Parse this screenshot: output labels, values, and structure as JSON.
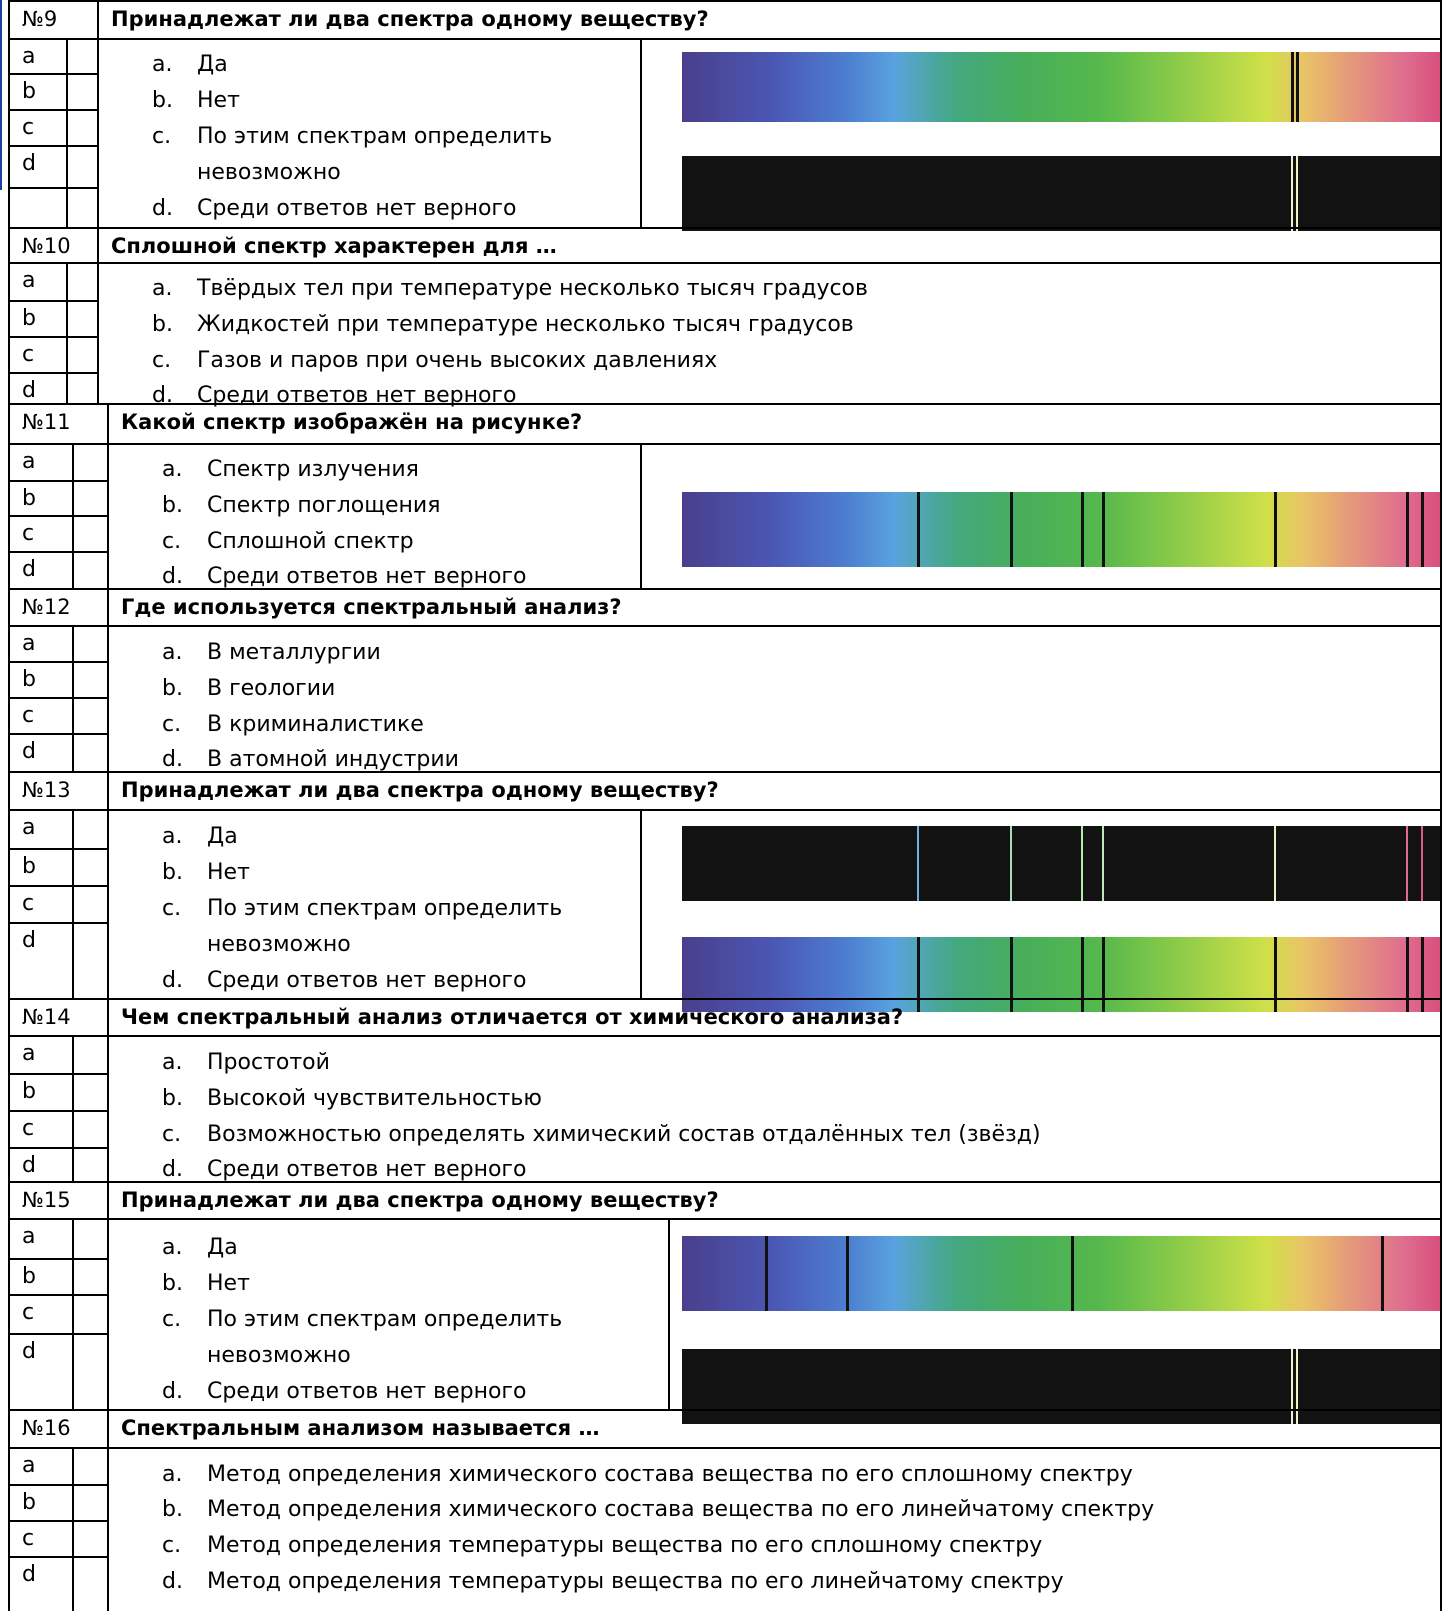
{
  "questions": [
    {
      "number": "№9",
      "text": "Принадлежат ли два спектра одному веществу?",
      "answer_boxes": [
        "a",
        "b",
        "c",
        "d"
      ],
      "options": [
        {
          "marker": "a.",
          "text": "Да"
        },
        {
          "marker": "b.",
          "text": "Нет"
        },
        {
          "marker": "c.",
          "text": "По этим спектрам определить",
          "text_cont": "невозможно"
        },
        {
          "marker": "d.",
          "text": "Среди ответов нет верного"
        }
      ],
      "figure": [
        {
          "type": "continuous",
          "dark_lines_fraction": [
            0.804,
            0.81
          ]
        },
        {
          "type": "emission",
          "bright_lines_fraction": [
            0.804,
            0.81
          ],
          "line_color": "#f2f0c8"
        }
      ]
    },
    {
      "number": "№10",
      "text": "Сплошной спектр характерен для …",
      "answer_boxes": [
        "a",
        "b",
        "c",
        "d"
      ],
      "options": [
        {
          "marker": "a.",
          "text": "Твёрдых тел при температуре несколько тысяч градусов"
        },
        {
          "marker": "b.",
          "text": "Жидкостей при температуре несколько тысяч градусов"
        },
        {
          "marker": "c.",
          "text": "Газов и паров при очень высоких давлениях"
        },
        {
          "marker": "d.",
          "text": "Среди ответов нет верного"
        }
      ]
    },
    {
      "number": "№11",
      "text": "Какой спектр изображён на рисунке?",
      "answer_boxes": [
        "a",
        "b",
        "c",
        "d"
      ],
      "options": [
        {
          "marker": "a.",
          "text": "Спектр излучения"
        },
        {
          "marker": "b.",
          "text": "Спектр поглощения"
        },
        {
          "marker": "c.",
          "text": "Сплошной спектр"
        },
        {
          "marker": "d.",
          "text": "Среди ответов нет верного"
        }
      ],
      "figure": [
        {
          "type": "absorption",
          "dark_lines_fraction": [
            0.31,
            0.433,
            0.527,
            0.554,
            0.781,
            0.955,
            0.975
          ]
        }
      ]
    },
    {
      "number": "№12",
      "text": "Где используется спектральный анализ?",
      "answer_boxes": [
        "a",
        "b",
        "c",
        "d"
      ],
      "options": [
        {
          "marker": "a.",
          "text": "В металлургии"
        },
        {
          "marker": "b.",
          "text": "В геологии"
        },
        {
          "marker": "c.",
          "text": "В криминалистике"
        },
        {
          "marker": "d.",
          "text": "В атомной индустрии"
        }
      ]
    },
    {
      "number": "№13",
      "text": "Принадлежат ли два спектра одному веществу?",
      "answer_boxes": [
        "a",
        "b",
        "c",
        "d"
      ],
      "options": [
        {
          "marker": "a.",
          "text": "Да"
        },
        {
          "marker": "b.",
          "text": "Нет"
        },
        {
          "marker": "c.",
          "text": "По этим спектрам определить",
          "text_cont": "невозможно"
        },
        {
          "marker": "d.",
          "text": "Среди ответов нет верного"
        }
      ],
      "figure": [
        {
          "type": "emission",
          "bright_lines_fraction": [
            0.31,
            0.433,
            0.527,
            0.554,
            0.781,
            0.955,
            0.975
          ],
          "line_colors": [
            "#6fb0e6",
            "#a8e0b0",
            "#b8e6b0",
            "#c0e8b8",
            "#f0f0c0",
            "#e06a9a",
            "#e05a8a"
          ]
        },
        {
          "type": "absorption",
          "dark_lines_fraction": [
            0.31,
            0.433,
            0.527,
            0.554,
            0.781,
            0.955,
            0.975
          ]
        }
      ]
    },
    {
      "number": "№14",
      "text": "Чем спектральный анализ отличается от химического анализа?",
      "answer_boxes": [
        "a",
        "b",
        "c",
        "d"
      ],
      "options": [
        {
          "marker": "a.",
          "text": "Простотой"
        },
        {
          "marker": "b.",
          "text": "Высокой чувствительностью"
        },
        {
          "marker": "c.",
          "text": "Возможностью определять химический состав отдалённых тел (звёзд)"
        },
        {
          "marker": "d.",
          "text": "Среди ответов нет верного"
        }
      ]
    },
    {
      "number": "№15",
      "text": "Принадлежат ли два спектра одному веществу?",
      "answer_boxes": [
        "a",
        "b",
        "c",
        "d"
      ],
      "options": [
        {
          "marker": "a.",
          "text": "Да"
        },
        {
          "marker": "b.",
          "text": "Нет"
        },
        {
          "marker": "c.",
          "text": "По этим спектрам определить",
          "text_cont": "невозможно"
        },
        {
          "marker": "d.",
          "text": "Среди ответов нет верного"
        }
      ],
      "figure": [
        {
          "type": "absorption",
          "dark_lines_fraction": [
            0.11,
            0.217,
            0.513,
            0.922
          ]
        },
        {
          "type": "emission",
          "bright_lines_fraction": [
            0.804,
            0.81
          ],
          "line_color": "#f2f0c8"
        }
      ]
    },
    {
      "number": "№16",
      "text": "Спектральным анализом называется …",
      "answer_boxes": [
        "a",
        "b",
        "c",
        "d"
      ],
      "options": [
        {
          "marker": "a.",
          "text": "Метод определения химического состава вещества по его сплошному спектру"
        },
        {
          "marker": "b.",
          "text": "Метод определения химического состава вещества по его линейчатому спектру"
        },
        {
          "marker": "c.",
          "text": "Метод определения температуры вещества по его сплошному спектру"
        },
        {
          "marker": "d.",
          "text": "Метод определения температуры вещества по его линейчатому спектру"
        }
      ]
    }
  ]
}
